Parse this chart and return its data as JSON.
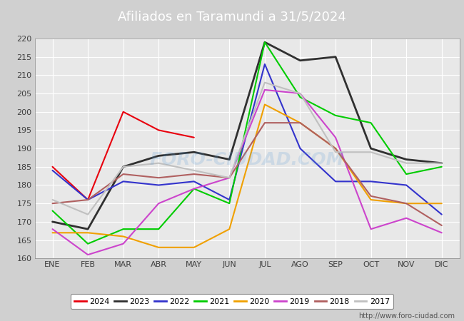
{
  "title": "Afiliados en Taramundi a 31/5/2024",
  "title_color": "white",
  "title_bg_color": "#5b9bd5",
  "bg_color": "#d0d0d0",
  "plot_bg_color": "#e8e8e8",
  "months": [
    "ENE",
    "FEB",
    "MAR",
    "ABR",
    "MAY",
    "JUN",
    "JUL",
    "AGO",
    "SEP",
    "OCT",
    "NOV",
    "DIC"
  ],
  "ylim": [
    160,
    220
  ],
  "yticks": [
    160,
    165,
    170,
    175,
    180,
    185,
    190,
    195,
    200,
    205,
    210,
    215,
    220
  ],
  "series": [
    {
      "year": "2024",
      "color": "#e8000d",
      "linewidth": 1.5,
      "data": [
        185,
        176,
        200,
        195,
        193,
        null,
        null,
        null,
        null,
        null,
        null,
        null
      ]
    },
    {
      "year": "2023",
      "color": "#303030",
      "linewidth": 2.0,
      "data": [
        170,
        168,
        185,
        188,
        189,
        187,
        219,
        214,
        215,
        190,
        187,
        186
      ]
    },
    {
      "year": "2022",
      "color": "#3333cc",
      "linewidth": 1.5,
      "data": [
        184,
        176,
        181,
        180,
        181,
        176,
        213,
        190,
        181,
        181,
        180,
        172
      ]
    },
    {
      "year": "2021",
      "color": "#00cc00",
      "linewidth": 1.5,
      "data": [
        173,
        164,
        168,
        168,
        179,
        175,
        219,
        204,
        199,
        197,
        183,
        185
      ]
    },
    {
      "year": "2020",
      "color": "#f0a000",
      "linewidth": 1.5,
      "data": [
        167,
        167,
        166,
        163,
        163,
        168,
        202,
        197,
        190,
        176,
        175,
        175
      ]
    },
    {
      "year": "2019",
      "color": "#cc44cc",
      "linewidth": 1.5,
      "data": [
        168,
        161,
        164,
        175,
        179,
        182,
        206,
        205,
        193,
        168,
        171,
        167
      ]
    },
    {
      "year": "2018",
      "color": "#b06060",
      "linewidth": 1.5,
      "data": [
        175,
        176,
        183,
        182,
        183,
        182,
        197,
        197,
        190,
        177,
        175,
        169
      ]
    },
    {
      "year": "2017",
      "color": "#c0c0c0",
      "linewidth": 1.5,
      "data": [
        176,
        172,
        185,
        186,
        184,
        182,
        208,
        205,
        189,
        189,
        186,
        186
      ]
    }
  ],
  "watermark": "FORO-CIUDAD.COM",
  "url": "http://www.foro-ciudad.com",
  "grid_color": "white",
  "tick_color": "#404040",
  "legend_border_color": "#888888"
}
